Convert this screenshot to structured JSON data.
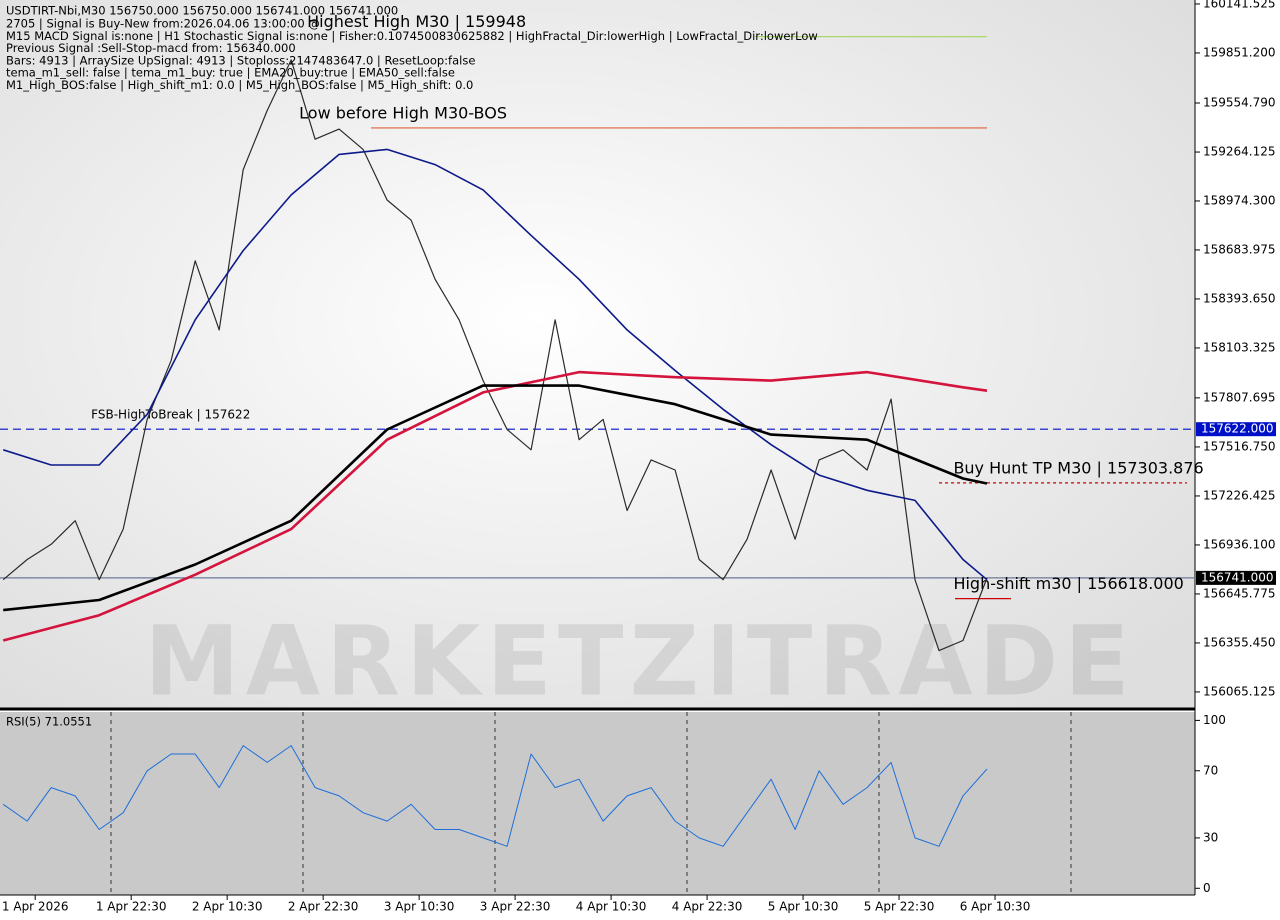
{
  "chart_data": [
    {
      "type": "line",
      "title": "USDTIRT-Nbi,M30  156750.000 156750.000 156741.000 156741.000",
      "info_lines": [
        "2705 | Signal is Buy-New from:2026.04.06 13:00:00 @",
        "M15 MACD Signal is:none | H1 Stochastic Signal is:none | Fisher:0.1074500830625882 | HighFractal_Dir:lowerHigh | LowFractal_Dir:lowerLow",
        "Previous Signal :Sell-Stop-macd from: 156340.000",
        "Bars: 4913 | ArraySize UpSignal: 4913 | Stoploss:2147483647.0 | ResetLoop:false",
        "tema_m1_sell: false | tema_m1_buy: true | EMA20_buy:true | EMA50_sell:false",
        "M1_High_BOS:false | High_shift_m1: 0.0 | M5_High_BOS:false | M5_High_shift: 0.0"
      ],
      "watermark": "MARKETZITRADE",
      "xlim": [
        -0.4,
        149
      ],
      "xticks": [
        {
          "value": 4,
          "label": "1 Apr 2026"
        },
        {
          "value": 16,
          "label": "1 Apr 22:30"
        },
        {
          "value": 28,
          "label": "2 Apr 10:30"
        },
        {
          "value": 40,
          "label": "2 Apr 22:30"
        },
        {
          "value": 52,
          "label": "3 Apr 10:30"
        },
        {
          "value": 64,
          "label": "3 Apr 22:30"
        },
        {
          "value": 76,
          "label": "4 Apr 10:30"
        },
        {
          "value": 88,
          "label": "4 Apr 22:30"
        },
        {
          "value": 100,
          "label": "5 Apr 10:30"
        },
        {
          "value": 112,
          "label": "5 Apr 22:30"
        },
        {
          "value": 124,
          "label": "6 Apr 10:30"
        }
      ],
      "ylim": [
        155970,
        160165
      ],
      "yticks": [
        {
          "value": 160141.525,
          "label": "160141.525"
        },
        {
          "value": 159851.2,
          "label": "159851.200"
        },
        {
          "value": 159554.79,
          "label": "159554.790"
        },
        {
          "value": 159264.125,
          "label": "159264.125"
        },
        {
          "value": 158974.3,
          "label": "158974.300"
        },
        {
          "value": 158683.975,
          "label": "158683.975"
        },
        {
          "value": 158393.65,
          "label": "158393.650"
        },
        {
          "value": 158103.325,
          "label": "158103.325"
        },
        {
          "value": 157807.695,
          "label": "157807.695"
        },
        {
          "value": 157516.75,
          "label": "157516.750"
        },
        {
          "value": 157226.425,
          "label": "157226.425"
        },
        {
          "value": 156936.1,
          "label": "156936.100"
        },
        {
          "value": 156645.775,
          "label": "156645.775"
        },
        {
          "value": 156355.45,
          "label": "156355.450"
        },
        {
          "value": 156065.125,
          "label": "156065.125"
        }
      ],
      "series": [
        {
          "color": "#2b2b2b",
          "width": 1.2,
          "x": [
            0,
            3,
            6,
            9,
            12,
            15,
            18,
            21,
            24,
            27,
            30,
            33,
            36,
            39,
            42,
            45,
            48,
            51,
            54,
            57,
            60,
            63,
            66,
            69,
            72,
            75,
            78,
            81,
            84,
            87,
            90,
            93,
            96,
            99,
            102,
            105,
            108,
            111,
            114,
            117,
            120,
            123
          ],
          "values": [
            156730,
            156850,
            156940,
            157080,
            156730,
            157030,
            157680,
            158030,
            158620,
            158210,
            159160,
            159510,
            159810,
            159340,
            159400,
            159280,
            158980,
            158860,
            158510,
            158270,
            157910,
            157620,
            157500,
            158270,
            157560,
            157680,
            157140,
            157440,
            157380,
            156850,
            156730,
            156970,
            157380,
            156970,
            157440,
            157500,
            157380,
            157800,
            156730,
            156310,
            156370,
            156741
          ]
        },
        {
          "color": "#0c1a8a",
          "width": 1.6,
          "x": [
            0,
            6,
            12,
            18,
            24,
            30,
            36,
            42,
            48,
            54,
            60,
            66,
            72,
            78,
            84,
            90,
            96,
            102,
            108,
            114,
            120,
            123
          ],
          "values": [
            157500,
            157410,
            157410,
            157710,
            158270,
            158680,
            159010,
            159250,
            159280,
            159190,
            159040,
            158770,
            158510,
            158210,
            157970,
            157740,
            157530,
            157350,
            157260,
            157200,
            156850,
            156730
          ]
        },
        {
          "color": "#d4143c",
          "width": 2.6,
          "x": [
            0,
            12,
            24,
            36,
            48,
            60,
            72,
            84,
            96,
            108,
            120,
            123
          ],
          "values": [
            156370,
            156520,
            156760,
            157030,
            157560,
            157840,
            157960,
            157930,
            157910,
            157960,
            157870,
            157850
          ]
        },
        {
          "color": "#000000",
          "width": 2.6,
          "x": [
            0,
            12,
            24,
            36,
            48,
            60,
            72,
            84,
            96,
            108,
            120,
            123
          ],
          "values": [
            156550,
            156610,
            156820,
            157080,
            157620,
            157880,
            157880,
            157770,
            157590,
            157560,
            157330,
            157300
          ]
        }
      ],
      "levels": [
        {
          "value": 157622,
          "axis_label": "157622.000",
          "text": "FSB-HighToBreak | 157622",
          "text_x": 11,
          "xrange": [
            -0.4,
            149
          ],
          "color": "#0010c8",
          "dash": "8,5"
        },
        {
          "value": 156741,
          "axis_label": "156741.000",
          "xrange": [
            -0.4,
            149
          ],
          "color": "#6b7a99",
          "dash": "none"
        },
        {
          "value": 159948,
          "text": "Highest High   M30 | 159948",
          "text_x": 38,
          "xrange": [
            94,
            123
          ],
          "color": "#a8d86a",
          "dash": "none"
        },
        {
          "value": 159407,
          "text": "Low before High   M30-BOS",
          "text_x": 37,
          "xrange": [
            46,
            123
          ],
          "color": "#e0603a",
          "dash": "none"
        },
        {
          "value": 157303.876,
          "text": "Buy Hunt TP M30 | 157303.876",
          "text_x": 118.8,
          "xrange": [
            117,
            148
          ],
          "color": "#cc0000",
          "dash": "3,3"
        },
        {
          "value": 156618,
          "text": "High-shift m30 | 156618.000",
          "text_x": 118.8,
          "xrange": [
            119,
            126
          ],
          "color": "#cc0000",
          "dash": "none"
        }
      ]
    },
    {
      "type": "line",
      "title": "RSI(5) 71.0551",
      "ylim": [
        -4,
        105
      ],
      "yticks": [
        100,
        70,
        30,
        0
      ],
      "series": [
        {
          "color": "#1e6fd9",
          "width": 1,
          "x": [
            0,
            3,
            6,
            9,
            12,
            15,
            18,
            21,
            24,
            27,
            30,
            33,
            36,
            39,
            42,
            45,
            48,
            51,
            54,
            57,
            60,
            63,
            66,
            69,
            72,
            75,
            78,
            81,
            84,
            87,
            90,
            93,
            96,
            99,
            102,
            105,
            108,
            111,
            114,
            117,
            120,
            123
          ],
          "values": [
            50,
            40,
            60,
            55,
            35,
            45,
            70,
            80,
            80,
            60,
            85,
            75,
            85,
            60,
            55,
            45,
            40,
            50,
            35,
            35,
            30,
            25,
            80,
            60,
            65,
            40,
            55,
            60,
            40,
            30,
            25,
            45,
            65,
            35,
            70,
            50,
            60,
            75,
            30,
            25,
            55,
            71.0551
          ]
        }
      ]
    }
  ]
}
